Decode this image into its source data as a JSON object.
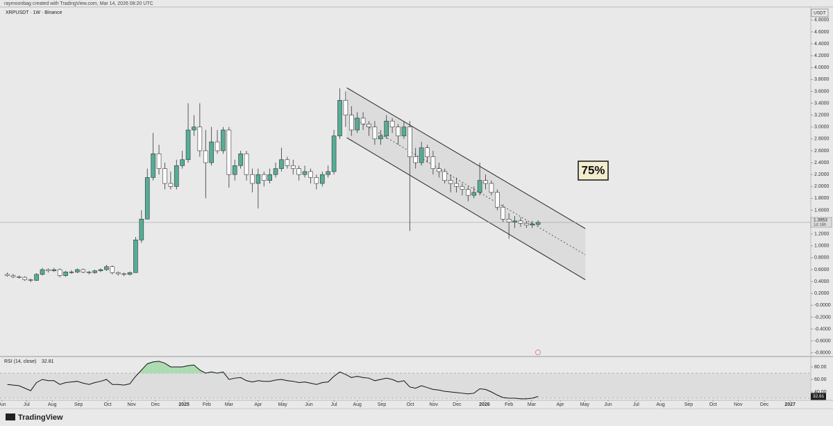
{
  "chart_data": {
    "type": "candlestick",
    "credit": "raymoonbag created with TradingView.com, Mar 14, 2026 08:20 UTC",
    "title": "XRPUSDT · 1W · Binance",
    "currency": "USDT",
    "annotation": "75%",
    "countdown": "1d 16h",
    "logo": "TradingView",
    "up_color": "#55ad97",
    "down_color": "#ffffff",
    "open": [
      0.52,
      0.5,
      0.48,
      0.47,
      0.43,
      0.42,
      0.52,
      0.6,
      0.58,
      0.6,
      0.5,
      0.56,
      0.56,
      0.6,
      0.56,
      0.55,
      0.58,
      0.6,
      0.65,
      0.55,
      0.53,
      0.52,
      0.55,
      1.1,
      1.45,
      2.15,
      2.55,
      2.3,
      2.05,
      2.0,
      2.35,
      2.45,
      2.95,
      3.0,
      2.6,
      2.4,
      2.75,
      2.6,
      2.95,
      2.2,
      2.35,
      2.55,
      2.2,
      2.05,
      2.2,
      2.1,
      2.2,
      2.3,
      2.45,
      2.35,
      2.3,
      2.2,
      2.25,
      2.15,
      2.05,
      2.2,
      2.25,
      2.85,
      3.45,
      3.2,
      2.95,
      3.15,
      3.05,
      3.0,
      2.8,
      2.85,
      3.1,
      3.0,
      2.85,
      3.0,
      2.5,
      2.4,
      2.65,
      2.5,
      2.3,
      2.25,
      2.1,
      2.05,
      2.0,
      1.95,
      1.85,
      1.9,
      2.1,
      2.05,
      1.9,
      1.65,
      1.45,
      1.4,
      1.42,
      1.38,
      1.35,
      1.36
    ],
    "high": [
      0.55,
      0.53,
      0.5,
      0.49,
      0.45,
      0.54,
      0.63,
      0.62,
      0.63,
      0.62,
      0.58,
      0.59,
      0.62,
      0.62,
      0.58,
      0.6,
      0.62,
      0.68,
      0.67,
      0.57,
      0.55,
      0.57,
      1.15,
      1.6,
      2.3,
      2.9,
      2.7,
      2.4,
      2.25,
      2.45,
      2.6,
      3.4,
      3.2,
      3.4,
      2.95,
      3.0,
      2.95,
      3.0,
      3.0,
      2.45,
      2.6,
      2.6,
      2.3,
      2.3,
      2.25,
      2.3,
      2.4,
      2.65,
      2.5,
      2.45,
      2.35,
      2.35,
      2.3,
      2.2,
      2.25,
      2.35,
      2.95,
      3.65,
      3.6,
      3.35,
      3.25,
      3.25,
      3.1,
      3.1,
      2.95,
      3.2,
      3.15,
      3.05,
      3.1,
      3.1,
      2.65,
      2.75,
      2.7,
      2.6,
      2.4,
      2.3,
      2.2,
      2.15,
      2.05,
      2.0,
      2.0,
      2.4,
      2.2,
      2.1,
      1.95,
      1.7,
      1.55,
      1.5,
      1.48,
      1.42,
      1.42,
      1.43
    ],
    "low": [
      0.48,
      0.46,
      0.45,
      0.41,
      0.39,
      0.41,
      0.5,
      0.55,
      0.56,
      0.47,
      0.48,
      0.53,
      0.54,
      0.54,
      0.52,
      0.53,
      0.56,
      0.58,
      0.52,
      0.5,
      0.49,
      0.5,
      0.55,
      1.05,
      1.45,
      2.1,
      2.2,
      1.95,
      1.95,
      1.95,
      2.3,
      2.4,
      2.85,
      2.5,
      1.8,
      2.35,
      2.55,
      2.55,
      1.98,
      2.1,
      2.3,
      2.1,
      1.9,
      1.63,
      2.0,
      2.05,
      2.15,
      2.25,
      2.3,
      2.2,
      2.1,
      2.15,
      2.05,
      1.95,
      2.0,
      2.15,
      2.2,
      2.8,
      3.0,
      2.85,
      2.9,
      2.95,
      2.85,
      2.7,
      2.7,
      2.8,
      2.9,
      2.7,
      2.8,
      1.25,
      2.3,
      2.35,
      2.4,
      2.2,
      2.15,
      2.05,
      1.9,
      1.9,
      1.85,
      1.75,
      1.8,
      1.85,
      1.95,
      1.85,
      1.6,
      1.4,
      1.12,
      1.3,
      1.32,
      1.3,
      1.3,
      1.33
    ],
    "close": [
      0.5,
      0.48,
      0.47,
      0.43,
      0.42,
      0.52,
      0.6,
      0.58,
      0.6,
      0.5,
      0.56,
      0.56,
      0.6,
      0.56,
      0.55,
      0.58,
      0.6,
      0.65,
      0.55,
      0.53,
      0.52,
      0.55,
      1.1,
      1.45,
      2.15,
      2.55,
      2.3,
      2.05,
      2.0,
      2.35,
      2.45,
      2.95,
      3.0,
      2.6,
      2.4,
      2.75,
      2.6,
      2.95,
      2.2,
      2.35,
      2.55,
      2.2,
      2.05,
      2.2,
      2.1,
      2.2,
      2.3,
      2.45,
      2.35,
      2.3,
      2.2,
      2.25,
      2.15,
      2.05,
      2.2,
      2.25,
      2.85,
      3.45,
      3.2,
      2.95,
      3.15,
      3.05,
      3.0,
      2.8,
      2.85,
      3.1,
      3.0,
      2.85,
      3.0,
      2.5,
      2.4,
      2.65,
      2.5,
      2.3,
      2.25,
      2.1,
      2.05,
      2.0,
      1.95,
      1.85,
      1.9,
      2.1,
      2.05,
      1.9,
      1.65,
      1.45,
      1.4,
      1.42,
      1.38,
      1.35,
      1.37,
      1.3953
    ],
    "xlim": [
      -1.26,
      137.4
    ],
    "ylim": [
      -0.85,
      5.02
    ],
    "xticks": [
      {
        "value": -0.9,
        "label": "Jun"
      },
      {
        "value": 3.3,
        "label": "Jul"
      },
      {
        "value": 7.7,
        "label": "Aug"
      },
      {
        "value": 12.2,
        "label": "Sep"
      },
      {
        "value": 17.2,
        "label": "Oct"
      },
      {
        "value": 21.3,
        "label": "Nov"
      },
      {
        "value": 25.4,
        "label": "Dec"
      },
      {
        "value": 30.3,
        "label": "2025"
      },
      {
        "value": 34.2,
        "label": "Feb"
      },
      {
        "value": 38.0,
        "label": "Mar"
      },
      {
        "value": 43.0,
        "label": "Apr"
      },
      {
        "value": 47.2,
        "label": "May"
      },
      {
        "value": 51.7,
        "label": "Jun"
      },
      {
        "value": 56.0,
        "label": "Jul"
      },
      {
        "value": 60.0,
        "label": "Aug"
      },
      {
        "value": 64.2,
        "label": "Sep"
      },
      {
        "value": 69.1,
        "label": "Oct"
      },
      {
        "value": 73.1,
        "label": "Nov"
      },
      {
        "value": 77.1,
        "label": "Dec"
      },
      {
        "value": 81.8,
        "label": "2026"
      },
      {
        "value": 86.0,
        "label": "Feb"
      },
      {
        "value": 89.9,
        "label": "Mar"
      },
      {
        "value": 94.8,
        "label": "Apr"
      },
      {
        "value": 99.0,
        "label": "May"
      },
      {
        "value": 103.0,
        "label": "Jun"
      },
      {
        "value": 107.8,
        "label": "Jul"
      },
      {
        "value": 112.0,
        "label": "Aug"
      },
      {
        "value": 116.8,
        "label": "Sep"
      },
      {
        "value": 121.0,
        "label": "Oct"
      },
      {
        "value": 125.3,
        "label": "Nov"
      },
      {
        "value": 129.8,
        "label": "Dec"
      },
      {
        "value": 134.2,
        "label": "2027"
      }
    ],
    "yticks": [
      {
        "value": 4.8,
        "label": "4.8000"
      },
      {
        "value": 4.6,
        "label": "4.6000"
      },
      {
        "value": 4.4,
        "label": "4.4000"
      },
      {
        "value": 4.2,
        "label": "4.2000"
      },
      {
        "value": 4.0,
        "label": "4.0000"
      },
      {
        "value": 3.8,
        "label": "3.8000"
      },
      {
        "value": 3.6,
        "label": "3.6000"
      },
      {
        "value": 3.4,
        "label": "3.4000"
      },
      {
        "value": 3.2,
        "label": "3.2000"
      },
      {
        "value": 3.0,
        "label": "3.0000"
      },
      {
        "value": 2.8,
        "label": "2.8000"
      },
      {
        "value": 2.6,
        "label": "2.6000"
      },
      {
        "value": 2.4,
        "label": "2.4000"
      },
      {
        "value": 2.2,
        "label": "2.2000"
      },
      {
        "value": 2.0,
        "label": "2.0000"
      },
      {
        "value": 1.8,
        "label": "1.8000"
      },
      {
        "value": 1.6,
        "label": "1.6000"
      },
      {
        "value": 1.2,
        "label": "1.2000"
      },
      {
        "value": 1.0,
        "label": "1.0000"
      },
      {
        "value": 0.8,
        "label": "0.8000"
      },
      {
        "value": 0.6,
        "label": "0.6000"
      },
      {
        "value": 0.4,
        "label": "0.4000"
      },
      {
        "value": 0.2,
        "label": "0.2000"
      },
      {
        "value": 0,
        "label": "-0.0000"
      },
      {
        "value": -0.2,
        "label": "-0.2000"
      },
      {
        "value": -0.4,
        "label": "-0.4000"
      },
      {
        "value": -0.6,
        "label": "-0.6000"
      },
      {
        "value": -0.8,
        "label": "-0.8000"
      }
    ],
    "channel": {
      "upper": [
        [
          58.2,
          3.66
        ],
        [
          99.1,
          1.29
        ]
      ],
      "middle": [
        [
          59.5,
          3.14
        ],
        [
          99.1,
          0.85
        ]
      ],
      "lower": [
        [
          58.2,
          2.82
        ],
        [
          99.1,
          0.43
        ]
      ]
    },
    "rsi": {
      "title": "RSI (14, close)",
      "color": "#111111",
      "values": [
        52,
        51,
        50,
        46,
        42,
        55,
        60,
        58,
        58,
        52,
        55,
        56,
        57,
        54,
        52,
        55,
        57,
        60,
        52,
        52,
        51,
        53,
        65,
        75,
        85,
        88,
        89,
        86,
        80,
        80,
        80,
        82,
        83,
        75,
        70,
        72,
        70,
        72,
        60,
        62,
        63,
        58,
        56,
        58,
        57,
        57,
        59,
        60,
        58,
        57,
        55,
        56,
        54,
        52,
        55,
        56,
        65,
        72,
        68,
        63,
        65,
        63,
        62,
        58,
        60,
        62,
        60,
        56,
        58,
        48,
        46,
        50,
        47,
        44,
        43,
        41,
        40,
        39,
        38,
        37,
        38,
        45,
        44,
        40,
        35,
        31,
        30,
        30,
        29,
        29,
        30,
        32.81
      ],
      "ylim": [
        27.8,
        94.4
      ],
      "bands": [
        70,
        30
      ],
      "yticks": [
        {
          "value": 80,
          "label": "80.00"
        },
        {
          "value": 60,
          "label": "60.00"
        },
        {
          "value": 40,
          "label": "40.00"
        }
      ]
    }
  }
}
